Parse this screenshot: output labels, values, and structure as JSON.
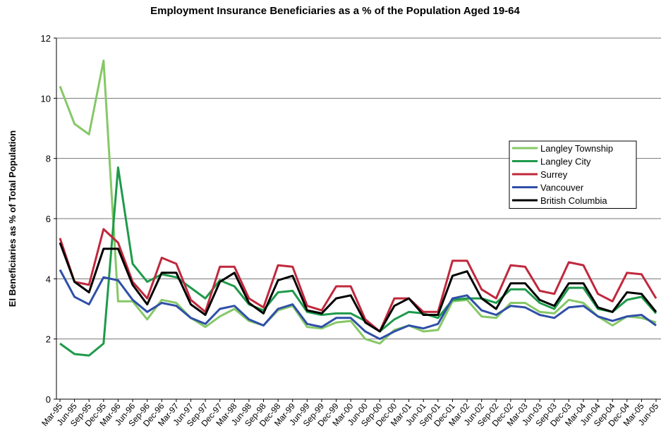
{
  "chart_data": {
    "type": "line",
    "title": "Employment Insurance Beneficiaries as a % of the Population Aged 19-64",
    "y_label": "EI Beneficiaries as % of Total Population",
    "categories": [
      "Mar-95",
      "Jun-95",
      "Sep-95",
      "Dec-95",
      "Mar-96",
      "Jun-96",
      "Sep-96",
      "Dec-96",
      "Mar-97",
      "Jun-97",
      "Sep-97",
      "Dec-97",
      "Mar-98",
      "Jun-98",
      "Sep-98",
      "Dec-98",
      "Mar-99",
      "Jun-99",
      "Sep-99",
      "Dec-99",
      "Mar-00",
      "Jun-00",
      "Sep-00",
      "Dec-00",
      "Mar-01",
      "Jun-01",
      "Sep-01",
      "Dec-01",
      "Mar-02",
      "Jun-02",
      "Sep-02",
      "Dec-02",
      "Mar-03",
      "Jun-03",
      "Sep-03",
      "Dec-03",
      "Mar-04",
      "Jun-04",
      "Sep-04",
      "Dec-04",
      "Mar-05",
      "Jun-05"
    ],
    "series": [
      {
        "name": "Langley Township",
        "color": "#86c866",
        "values": [
          10.4,
          9.15,
          8.8,
          11.25,
          3.25,
          3.25,
          2.65,
          3.3,
          3.2,
          2.7,
          2.4,
          2.75,
          3.0,
          2.6,
          2.45,
          2.95,
          3.1,
          2.4,
          2.35,
          2.55,
          2.6,
          2.0,
          1.85,
          2.3,
          2.45,
          2.25,
          2.3,
          3.25,
          3.3,
          2.75,
          2.7,
          3.2,
          3.2,
          2.9,
          2.85,
          3.3,
          3.2,
          2.75,
          2.45,
          2.75,
          2.7,
          2.55
        ]
      },
      {
        "name": "Langley City",
        "color": "#1e9a4a",
        "values": [
          1.85,
          1.5,
          1.45,
          1.85,
          7.7,
          4.5,
          3.9,
          4.15,
          4.05,
          3.7,
          3.35,
          3.95,
          3.75,
          3.15,
          2.95,
          3.55,
          3.6,
          2.9,
          2.8,
          2.85,
          2.85,
          2.6,
          2.25,
          2.65,
          2.9,
          2.85,
          2.7,
          3.3,
          3.35,
          3.35,
          3.2,
          3.65,
          3.65,
          3.2,
          3.0,
          3.7,
          3.7,
          3.0,
          2.9,
          3.3,
          3.4,
          2.85
        ]
      },
      {
        "name": "Surrey",
        "color": "#c0283c",
        "values": [
          5.35,
          3.9,
          3.8,
          5.65,
          5.2,
          3.9,
          3.35,
          4.7,
          4.5,
          3.3,
          2.9,
          4.4,
          4.4,
          3.35,
          3.05,
          4.45,
          4.4,
          3.1,
          2.95,
          3.75,
          3.75,
          2.65,
          2.25,
          3.35,
          3.35,
          2.9,
          2.9,
          4.6,
          4.6,
          3.65,
          3.35,
          4.45,
          4.4,
          3.6,
          3.5,
          4.55,
          4.45,
          3.5,
          3.25,
          4.2,
          4.15,
          3.35
        ]
      },
      {
        "name": "Vancouver",
        "color": "#2f4fa8",
        "values": [
          4.3,
          3.4,
          3.15,
          4.05,
          3.95,
          3.3,
          2.9,
          3.2,
          3.1,
          2.7,
          2.5,
          3.0,
          3.1,
          2.65,
          2.45,
          3.0,
          3.15,
          2.5,
          2.4,
          2.7,
          2.7,
          2.25,
          2.0,
          2.25,
          2.45,
          2.35,
          2.5,
          3.35,
          3.45,
          2.95,
          2.8,
          3.1,
          3.05,
          2.8,
          2.7,
          3.05,
          3.1,
          2.75,
          2.6,
          2.75,
          2.8,
          2.45
        ]
      },
      {
        "name": "British Columbia",
        "color": "#000000",
        "values": [
          5.2,
          3.9,
          3.55,
          5.0,
          5.0,
          3.8,
          3.15,
          4.2,
          4.2,
          3.15,
          2.8,
          3.9,
          4.2,
          3.2,
          2.85,
          3.95,
          4.1,
          2.95,
          2.85,
          3.35,
          3.45,
          2.55,
          2.25,
          3.1,
          3.35,
          2.8,
          2.8,
          4.1,
          4.25,
          3.35,
          3.0,
          3.85,
          3.85,
          3.3,
          3.1,
          3.85,
          3.85,
          3.05,
          2.9,
          3.55,
          3.5,
          2.9
        ]
      }
    ],
    "ylim": [
      0,
      12
    ],
    "yticks": [
      0,
      2,
      4,
      6,
      8,
      10,
      12
    ],
    "grid": true,
    "legend": "right"
  }
}
